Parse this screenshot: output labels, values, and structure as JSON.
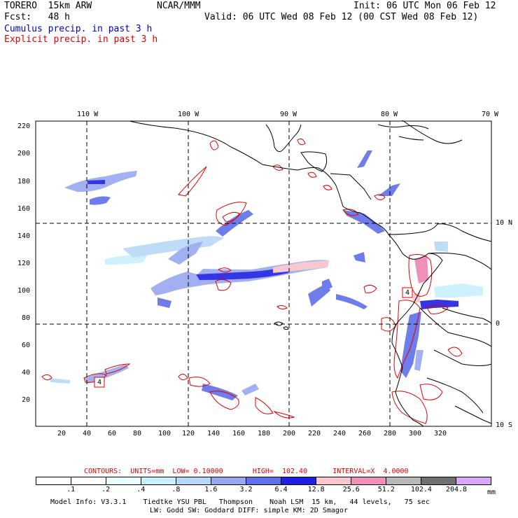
{
  "header": {
    "model": "TORERO  15km ARW",
    "org": "NCAR/MMM",
    "init": "Init: 06 UTC Mon 06 Feb 12",
    "fcst": "Fcst:   48 h",
    "valid": "Valid: 06 UTC Wed 08 Feb 12 (00 CST Wed 08 Feb 12)",
    "legend_cumulus": "Cumulus precip. in past 3 h",
    "legend_explicit": "Explicit precip. in past 3 h"
  },
  "map": {
    "lon_labels": [
      "110 W",
      "100 W",
      "90 W",
      "80 W",
      "70 W"
    ],
    "lat_labels": [
      "10 N",
      "0",
      "10 S"
    ],
    "y_ticks": [
      "220",
      "200",
      "180",
      "160",
      "140",
      "120",
      "100",
      "80",
      "60",
      "40",
      "20"
    ],
    "x_ticks": [
      "20",
      "40",
      "60",
      "80",
      "100",
      "120",
      "140",
      "160",
      "180",
      "200",
      "220",
      "240",
      "260",
      "280",
      "300",
      "320"
    ],
    "box_labels": [
      "4",
      "4"
    ]
  },
  "contours": {
    "line": "CONTOURS:  UNITS=mm  LOW= 0.10000       HIGH=  102.40      INTERVAL=X  4.0000"
  },
  "colorbar": {
    "labels": [
      ".1",
      ".2",
      ".4",
      ".8",
      "1.6",
      "3.2",
      "6.4",
      "12.8",
      "25.6",
      "51.2",
      "102.4",
      "204.8"
    ],
    "unit": "mm",
    "colors": [
      "#ffffff",
      "#ffffff",
      "#e8ffff",
      "#c8f0ff",
      "#b8d8f8",
      "#98a8f0",
      "#6070e8",
      "#2020e0",
      "#f8c8d0",
      "#f090b8",
      "#b8b8b8",
      "#707070",
      "#d8a8f8"
    ]
  },
  "footer": {
    "line1": "Model Info: V3.3.1    Tiedtke YSU PBL   Thompson    Noah LSM  15 km,   44 levels,   75 sec",
    "line2": "LW: Godd SW: Goddard DIFF: simple KM: 2D Smagor"
  }
}
